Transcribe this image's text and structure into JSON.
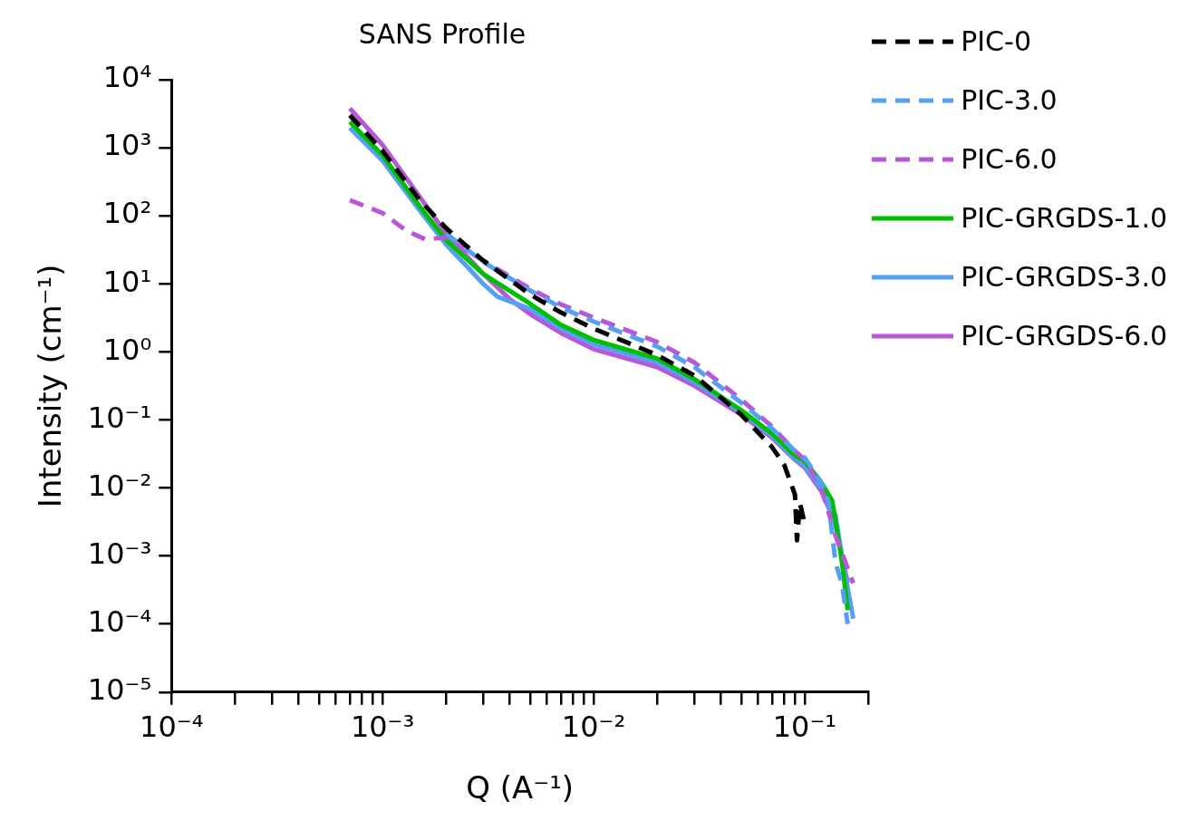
{
  "chart_data": {
    "type": "line",
    "title": "SANS Profile",
    "xlabel": "Q (A⁻¹)",
    "ylabel": "Intensity (cm⁻¹)",
    "log": "xy",
    "legend": "top right",
    "grid": false,
    "marker": "none",
    "xlim": [
      0.0001,
      0.2
    ],
    "ylim": [
      1e-05,
      10000
    ],
    "xticks": [
      {
        "value": 0.0001,
        "label": "10⁻⁴"
      },
      {
        "value": 0.0002,
        "label": null
      },
      {
        "value": 0.0003,
        "label": null
      },
      {
        "value": 0.0004,
        "label": null
      },
      {
        "value": 0.0005,
        "label": null
      },
      {
        "value": 0.0006,
        "label": null
      },
      {
        "value": 0.0007,
        "label": null
      },
      {
        "value": 0.0008,
        "label": null
      },
      {
        "value": 0.0009,
        "label": null
      },
      {
        "value": 0.001,
        "label": "10⁻³"
      },
      {
        "value": 0.002,
        "label": null
      },
      {
        "value": 0.003,
        "label": null
      },
      {
        "value": 0.004,
        "label": null
      },
      {
        "value": 0.005,
        "label": null
      },
      {
        "value": 0.006,
        "label": null
      },
      {
        "value": 0.007,
        "label": null
      },
      {
        "value": 0.008,
        "label": null
      },
      {
        "value": 0.009,
        "label": null
      },
      {
        "value": 0.01,
        "label": "10⁻²"
      },
      {
        "value": 0.02,
        "label": null
      },
      {
        "value": 0.03,
        "label": null
      },
      {
        "value": 0.04,
        "label": null
      },
      {
        "value": 0.05,
        "label": null
      },
      {
        "value": 0.06,
        "label": null
      },
      {
        "value": 0.07,
        "label": null
      },
      {
        "value": 0.08,
        "label": null
      },
      {
        "value": 0.09,
        "label": null
      },
      {
        "value": 0.1,
        "label": "10⁻¹"
      },
      {
        "value": 0.2,
        "label": null
      }
    ],
    "yticks": [
      {
        "value": 1e-05,
        "label": "10⁻⁵"
      },
      {
        "value": 0.0001,
        "label": "10⁻⁴"
      },
      {
        "value": 0.001,
        "label": "10⁻³"
      },
      {
        "value": 0.01,
        "label": "10⁻²"
      },
      {
        "value": 0.1,
        "label": "10⁻¹"
      },
      {
        "value": 1,
        "label": "10⁰"
      },
      {
        "value": 10,
        "label": "10¹"
      },
      {
        "value": 100,
        "label": "10²"
      },
      {
        "value": 1000,
        "label": "10³"
      },
      {
        "value": 10000,
        "label": "10⁴"
      }
    ],
    "series": [
      {
        "name": "PIC-0",
        "color": "#000000",
        "line_style": "dashed",
        "x": [
          0.0007,
          0.001,
          0.0015,
          0.002,
          0.003,
          0.005,
          0.007,
          0.01,
          0.02,
          0.03,
          0.05,
          0.07,
          0.08,
          0.09,
          0.092,
          0.095,
          0.1
        ],
        "values": [
          3000,
          900,
          170,
          66,
          22,
          7,
          3.8,
          2.2,
          0.9,
          0.45,
          0.12,
          0.04,
          0.022,
          0.008,
          0.0017,
          0.006,
          0.003
        ]
      },
      {
        "name": "PIC-3.0",
        "color": "#55a0f5",
        "line_style": "dashed",
        "x": [
          0.002,
          0.003,
          0.005,
          0.007,
          0.01,
          0.02,
          0.03,
          0.05,
          0.07,
          0.09,
          0.1,
          0.12,
          0.13,
          0.14,
          0.15,
          0.16
        ],
        "values": [
          55,
          21,
          8,
          4.5,
          2.8,
          1.2,
          0.6,
          0.18,
          0.075,
          0.035,
          0.028,
          0.012,
          0.006,
          0.0008,
          0.0004,
          0.0001
        ]
      },
      {
        "name": "PIC-6.0",
        "color": "#b858d8",
        "line_style": "dashed",
        "x": [
          0.0007,
          0.001,
          0.0013,
          0.0016,
          0.002,
          0.003,
          0.005,
          0.007,
          0.01,
          0.02,
          0.03,
          0.05,
          0.07,
          0.09,
          0.1,
          0.12,
          0.14,
          0.17
        ],
        "values": [
          170,
          110,
          60,
          45,
          48,
          22,
          8.5,
          5,
          3.2,
          1.4,
          0.7,
          0.2,
          0.08,
          0.035,
          0.026,
          0.01,
          0.002,
          0.0004
        ]
      },
      {
        "name": "PIC-GRGDS-1.0",
        "color": "#00c000",
        "line_style": "solid",
        "x": [
          0.0007,
          0.001,
          0.0015,
          0.002,
          0.003,
          0.005,
          0.007,
          0.01,
          0.02,
          0.03,
          0.05,
          0.07,
          0.09,
          0.1,
          0.12,
          0.135,
          0.15,
          0.16
        ],
        "values": [
          2400,
          780,
          138,
          44,
          14,
          5.1,
          2.5,
          1.5,
          0.8,
          0.4,
          0.14,
          0.063,
          0.03,
          0.025,
          0.012,
          0.0065,
          0.00085,
          0.00016
        ]
      },
      {
        "name": "PIC-GRGDS-3.0",
        "color": "#55a0f5",
        "line_style": "solid",
        "x": [
          0.0007,
          0.001,
          0.0015,
          0.002,
          0.003,
          0.0035,
          0.005,
          0.007,
          0.01,
          0.02,
          0.03,
          0.05,
          0.07,
          0.09,
          0.1,
          0.12,
          0.14,
          0.15,
          0.17
        ],
        "values": [
          1950,
          650,
          120,
          38,
          10,
          6.5,
          4.3,
          2.2,
          1.3,
          0.7,
          0.36,
          0.13,
          0.058,
          0.027,
          0.021,
          0.01,
          0.004,
          0.001,
          0.00012
        ]
      },
      {
        "name": "PIC-GRGDS-6.0",
        "color": "#b858d8",
        "line_style": "solid",
        "x": [
          0.0007,
          0.001,
          0.0015,
          0.002,
          0.003,
          0.004,
          0.005,
          0.007,
          0.01,
          0.02,
          0.03,
          0.05,
          0.07,
          0.09,
          0.1,
          0.12,
          0.14,
          0.16
        ],
        "values": [
          3800,
          1100,
          190,
          55,
          14,
          6,
          3.6,
          1.9,
          1.1,
          0.6,
          0.32,
          0.12,
          0.055,
          0.026,
          0.02,
          0.009,
          0.003,
          0.0004
        ]
      }
    ]
  }
}
